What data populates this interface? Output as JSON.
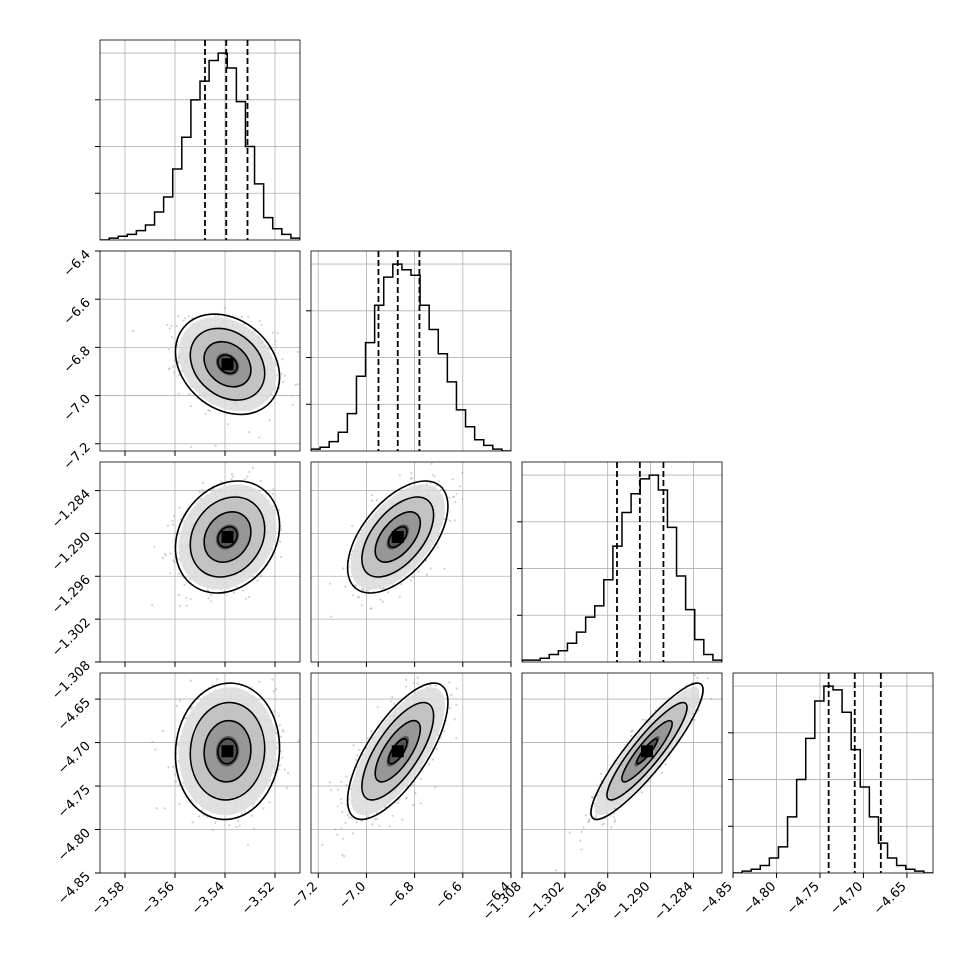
{
  "chart_data": {
    "type": "corner",
    "grid": true,
    "parameters": [
      {
        "range": [
          -3.59,
          -3.51
        ],
        "ticks": [
          -3.58,
          -3.56,
          -3.54,
          -3.52
        ],
        "tick_labels": [
          "−3.58",
          "−3.56",
          "−3.54",
          "−3.52"
        ],
        "quantiles": [
          -3.548,
          -3.5395,
          -3.531
        ],
        "mode": -3.539,
        "sigma": 0.0085,
        "histogram": [
          0,
          0.01,
          0.02,
          0.03,
          0.05,
          0.08,
          0.15,
          0.23,
          0.38,
          0.55,
          0.75,
          0.85,
          0.96,
          1.0,
          0.92,
          0.74,
          0.5,
          0.3,
          0.12,
          0.06,
          0.03,
          0.01
        ]
      },
      {
        "range": [
          -7.23,
          -6.4
        ],
        "ticks": [
          -7.2,
          -7.0,
          -6.8,
          -6.6,
          -6.4
        ],
        "tick_labels": [
          "−7.2",
          "−7.0",
          "−6.8",
          "−6.6",
          "−6.4"
        ],
        "quantiles": [
          -6.95,
          -6.87,
          -6.78
        ],
        "mode": -6.87,
        "sigma": 0.085,
        "histogram": [
          0.01,
          0.02,
          0.05,
          0.1,
          0.2,
          0.4,
          0.58,
          0.78,
          0.93,
          1.0,
          0.97,
          0.94,
          0.78,
          0.65,
          0.52,
          0.37,
          0.22,
          0.13,
          0.06,
          0.03,
          0.01,
          0
        ]
      },
      {
        "range": [
          -1.308,
          -1.28
        ],
        "ticks": [
          -1.308,
          -1.302,
          -1.296,
          -1.29,
          -1.284
        ],
        "tick_labels": [
          "−1.308",
          "−1.302",
          "−1.296",
          "−1.290",
          "−1.284"
        ],
        "quantiles": [
          -1.2947,
          -1.2915,
          -1.2882
        ],
        "mode": -1.2905,
        "sigma": 0.0032,
        "histogram": [
          0.01,
          0.01,
          0.02,
          0.04,
          0.06,
          0.1,
          0.16,
          0.24,
          0.3,
          0.44,
          0.62,
          0.8,
          0.9,
          0.98,
          1.0,
          0.92,
          0.72,
          0.46,
          0.28,
          0.12,
          0.04,
          0.01
        ]
      },
      {
        "range": [
          -4.85,
          -4.62
        ],
        "ticks": [
          -4.85,
          -4.8,
          -4.75,
          -4.7,
          -4.65
        ],
        "tick_labels": [
          "−4.85",
          "−4.80",
          "−4.75",
          "−4.70",
          "−4.65"
        ],
        "quantiles": [
          -4.74,
          -4.71,
          -4.68
        ],
        "mode": -4.71,
        "sigma": 0.032,
        "histogram": [
          0,
          0.01,
          0.02,
          0.04,
          0.08,
          0.14,
          0.3,
          0.5,
          0.72,
          0.92,
          1.0,
          0.98,
          0.86,
          0.66,
          0.46,
          0.3,
          0.16,
          0.08,
          0.04,
          0.02,
          0.01,
          0
        ]
      }
    ],
    "correlations": {
      "1-0": -0.25,
      "2-0": 0.2,
      "2-1": 0.55,
      "3-0": 0.05,
      "3-1": 0.72,
      "3-2": 0.9
    }
  }
}
